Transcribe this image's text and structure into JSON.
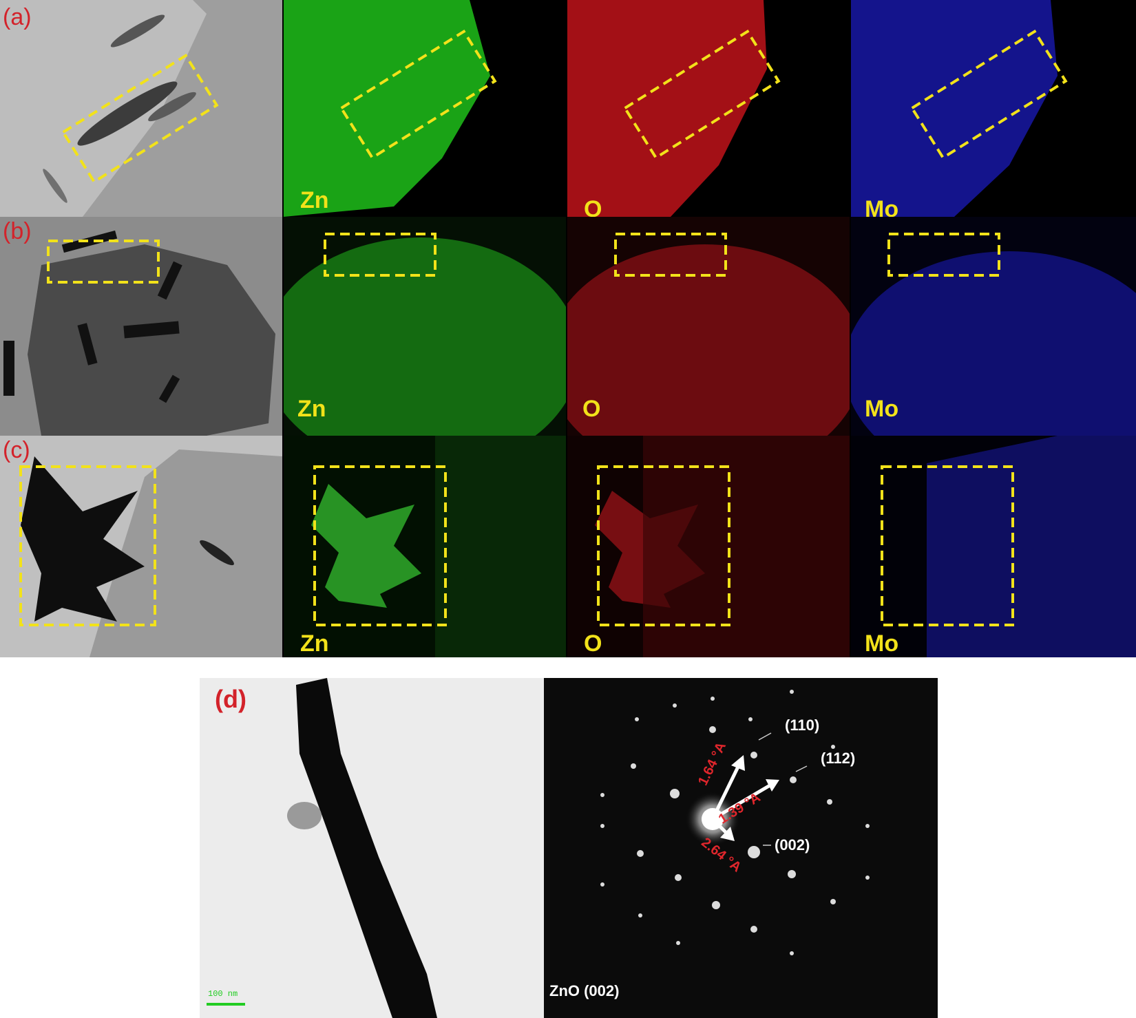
{
  "panels": {
    "a": {
      "label": "(a)"
    },
    "b": {
      "label": "(b)"
    },
    "c": {
      "label": "(c)"
    },
    "d": {
      "label": "(d)"
    }
  },
  "elements": {
    "zn": "Zn",
    "o": "O",
    "mo": "Mo"
  },
  "colors": {
    "zn": "#1fbf1a",
    "o": "#c0131a",
    "mo": "#1c1cc8",
    "highlight_box": "#f2e21a",
    "panel_label": "#d3222a"
  },
  "diffraction": {
    "caption": "ZnO (002)",
    "spots": [
      {
        "label": "(110)"
      },
      {
        "label": "(112)"
      },
      {
        "label": "(002)"
      }
    ],
    "distances": [
      "1.64 °A",
      "1.39 °A",
      "2.64 °A"
    ]
  },
  "scale_bar": {
    "label": "100 nm",
    "color": "#22cc22"
  }
}
